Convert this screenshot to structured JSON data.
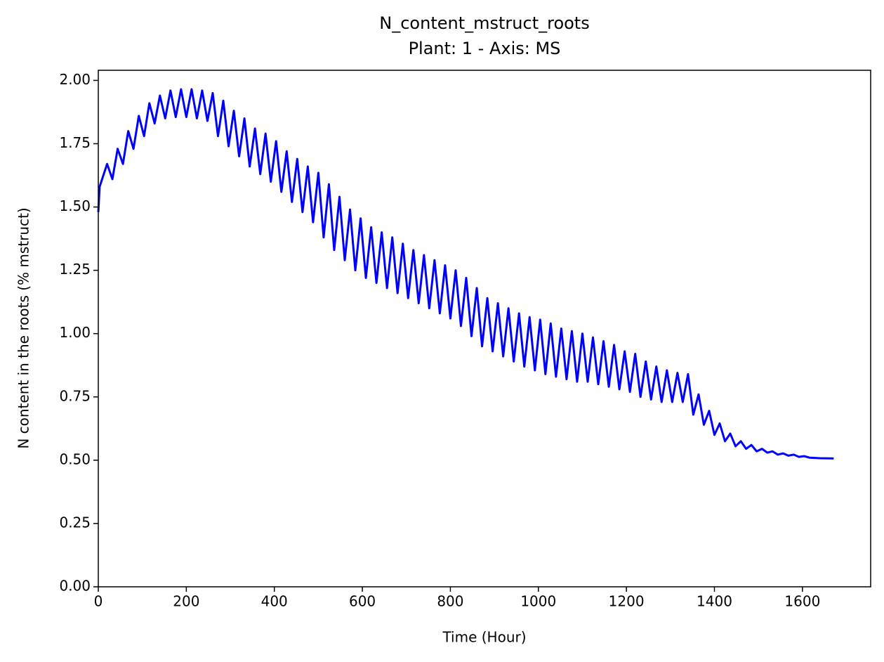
{
  "chart_data": {
    "type": "line",
    "title": "N_content_mstruct_roots",
    "subtitle": "Plant: 1 - Axis: MS",
    "xlabel": "Time (Hour)",
    "ylabel": "N content in the roots (% mstruct)",
    "color": "#0000ff",
    "xlim": [
      0,
      1755
    ],
    "ylim": [
      0,
      2.04
    ],
    "xticks": [
      0,
      200,
      400,
      600,
      800,
      1000,
      1200,
      1400,
      1600
    ],
    "yticks": [
      {
        "value": 0,
        "label": "0.00"
      },
      {
        "value": 0.25,
        "label": "0.25"
      },
      {
        "value": 0.5,
        "label": "0.50"
      },
      {
        "value": 0.75,
        "label": "0.75"
      },
      {
        "value": 1,
        "label": "1.00"
      },
      {
        "value": 1.25,
        "label": "1.25"
      },
      {
        "value": 1.5,
        "label": "1.50"
      },
      {
        "value": 1.75,
        "label": "1.75"
      },
      {
        "value": 2,
        "label": "2.00"
      }
    ],
    "x": [
      0,
      3,
      20,
      32,
      44,
      56,
      68,
      80,
      92,
      104,
      116,
      128,
      140,
      152,
      164,
      176,
      188,
      200,
      212,
      224,
      236,
      248,
      260,
      272,
      284,
      296,
      308,
      320,
      332,
      344,
      356,
      368,
      380,
      392,
      404,
      416,
      428,
      440,
      452,
      464,
      476,
      488,
      500,
      512,
      524,
      536,
      548,
      560,
      572,
      584,
      596,
      608,
      620,
      632,
      644,
      656,
      668,
      680,
      692,
      704,
      716,
      728,
      740,
      752,
      764,
      776,
      788,
      800,
      812,
      824,
      836,
      848,
      860,
      872,
      884,
      896,
      908,
      920,
      932,
      944,
      956,
      968,
      980,
      992,
      1004,
      1016,
      1028,
      1040,
      1052,
      1064,
      1076,
      1088,
      1100,
      1112,
      1124,
      1136,
      1148,
      1160,
      1172,
      1184,
      1196,
      1208,
      1220,
      1232,
      1244,
      1256,
      1268,
      1280,
      1292,
      1304,
      1316,
      1328,
      1340,
      1352,
      1364,
      1376,
      1388,
      1400,
      1412,
      1424,
      1436,
      1448,
      1460,
      1472,
      1484,
      1496,
      1508,
      1520,
      1532,
      1544,
      1556,
      1568,
      1580,
      1592,
      1604,
      1616,
      1640,
      1671
    ],
    "values": [
      1.48,
      1.58,
      1.67,
      1.61,
      1.73,
      1.67,
      1.8,
      1.73,
      1.86,
      1.78,
      1.91,
      1.83,
      1.94,
      1.85,
      1.96,
      1.855,
      1.965,
      1.855,
      1.965,
      1.85,
      1.96,
      1.84,
      1.95,
      1.78,
      1.92,
      1.74,
      1.88,
      1.7,
      1.85,
      1.66,
      1.81,
      1.63,
      1.79,
      1.6,
      1.76,
      1.56,
      1.72,
      1.52,
      1.69,
      1.48,
      1.66,
      1.44,
      1.635,
      1.38,
      1.59,
      1.33,
      1.54,
      1.29,
      1.49,
      1.25,
      1.455,
      1.22,
      1.42,
      1.2,
      1.4,
      1.18,
      1.38,
      1.16,
      1.355,
      1.14,
      1.33,
      1.12,
      1.31,
      1.1,
      1.29,
      1.08,
      1.27,
      1.06,
      1.25,
      1.03,
      1.22,
      0.99,
      1.18,
      0.95,
      1.14,
      0.93,
      1.12,
      0.91,
      1.1,
      0.89,
      1.08,
      0.87,
      1.065,
      0.855,
      1.055,
      0.84,
      1.04,
      0.83,
      1.02,
      0.82,
      1.01,
      0.81,
      1.0,
      0.81,
      0.985,
      0.8,
      0.97,
      0.79,
      0.955,
      0.78,
      0.93,
      0.77,
      0.92,
      0.75,
      0.89,
      0.74,
      0.87,
      0.73,
      0.855,
      0.73,
      0.845,
      0.73,
      0.84,
      0.68,
      0.76,
      0.64,
      0.695,
      0.6,
      0.645,
      0.575,
      0.605,
      0.555,
      0.575,
      0.545,
      0.56,
      0.535,
      0.545,
      0.53,
      0.535,
      0.522,
      0.527,
      0.518,
      0.522,
      0.513,
      0.516,
      0.51,
      0.508,
      0.507
    ]
  }
}
